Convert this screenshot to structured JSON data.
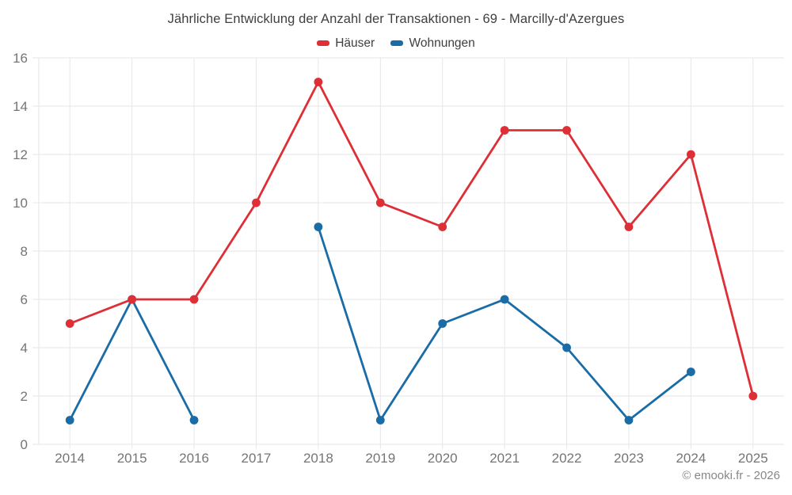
{
  "chart_data": {
    "type": "line",
    "title": "Jährliche Entwicklung der Anzahl der Transaktionen - 69 - Marcilly-d'Azergues",
    "categories": [
      "2014",
      "2015",
      "2016",
      "2017",
      "2018",
      "2019",
      "2020",
      "2021",
      "2022",
      "2023",
      "2024",
      "2025"
    ],
    "series": [
      {
        "name": "Häuser",
        "color": "#de2e36",
        "values": [
          5,
          6,
          6,
          10,
          15,
          10,
          9,
          13,
          13,
          9,
          12,
          2
        ]
      },
      {
        "name": "Wohnungen",
        "color": "#1a6ca6",
        "values": [
          1,
          6,
          1,
          null,
          9,
          1,
          5,
          6,
          4,
          1,
          3,
          null
        ]
      }
    ],
    "ylim": [
      0,
      16
    ],
    "yticks": [
      0,
      2,
      4,
      6,
      8,
      10,
      12,
      14,
      16
    ],
    "grid": true,
    "legend_position": "top",
    "footer": "© emooki.fr - 2026"
  },
  "colors": {
    "grid": "#e6e6e6",
    "axis_label": "#757575",
    "title_text": "#3f3f3f",
    "footer_text": "#878787",
    "background": "#ffffff"
  }
}
